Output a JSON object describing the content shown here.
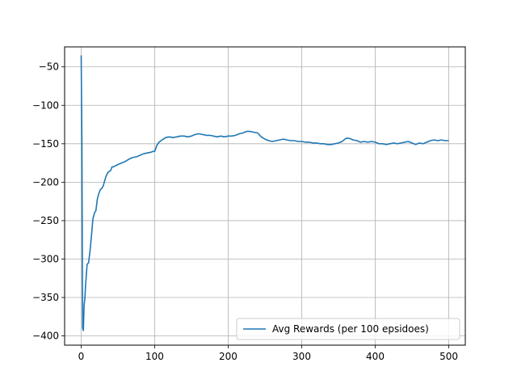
{
  "chart_data": {
    "type": "line",
    "title": "",
    "xlabel": "",
    "ylabel": "",
    "xlim": [
      -22.5,
      522.5
    ],
    "ylim": [
      -412,
      -24
    ],
    "x_ticks": [
      0,
      100,
      200,
      300,
      400,
      500
    ],
    "y_ticks": [
      -50,
      -100,
      -150,
      -200,
      -250,
      -300,
      -350,
      -400
    ],
    "x_tick_labels": [
      "0",
      "100",
      "200",
      "300",
      "400",
      "500"
    ],
    "y_tick_labels": [
      "−50",
      "−100",
      "−150",
      "−200",
      "−250",
      "−300",
      "−350",
      "−400"
    ],
    "grid": true,
    "legend_position": "lower-right",
    "series": [
      {
        "name": "Avg Rewards (per 100 epsidoes)",
        "color": "#1f77b4",
        "x": [
          0,
          1,
          2,
          3,
          4,
          5,
          6,
          8,
          10,
          12,
          14,
          16,
          18,
          20,
          22,
          24,
          26,
          28,
          30,
          32,
          34,
          36,
          38,
          40,
          42,
          44,
          46,
          48,
          50,
          55,
          60,
          65,
          70,
          75,
          80,
          85,
          90,
          95,
          98,
          100,
          103,
          106,
          110,
          115,
          120,
          125,
          130,
          135,
          140,
          145,
          150,
          155,
          160,
          165,
          170,
          175,
          180,
          185,
          190,
          195,
          200,
          205,
          210,
          215,
          220,
          225,
          230,
          235,
          240,
          245,
          250,
          255,
          260,
          265,
          270,
          275,
          280,
          285,
          290,
          295,
          300,
          305,
          310,
          315,
          320,
          325,
          330,
          335,
          340,
          345,
          350,
          355,
          360,
          365,
          370,
          375,
          380,
          385,
          390,
          395,
          400,
          405,
          410,
          415,
          420,
          425,
          430,
          435,
          440,
          445,
          450,
          455,
          460,
          465,
          470,
          475,
          480,
          485,
          490,
          495,
          500
        ],
        "values": [
          -35,
          -150,
          -390,
          -393,
          -360,
          -352,
          -335,
          -307,
          -305,
          -290,
          -270,
          -248,
          -240,
          -237,
          -222,
          -215,
          -210,
          -208,
          -205,
          -198,
          -192,
          -188,
          -186,
          -185,
          -180,
          -180,
          -179,
          -178,
          -177,
          -175,
          -173,
          -170,
          -168,
          -167,
          -165,
          -163,
          -162,
          -161,
          -160,
          -160,
          -152,
          -148,
          -145,
          -142,
          -141,
          -142,
          -141,
          -140,
          -140,
          -141,
          -140,
          -138,
          -137,
          -138,
          -139,
          -139,
          -140,
          -141,
          -140,
          -141,
          -140,
          -140,
          -139,
          -137,
          -136,
          -134,
          -134,
          -135,
          -136,
          -141,
          -144,
          -146,
          -147,
          -146,
          -145,
          -144,
          -145,
          -146,
          -146,
          -147,
          -147,
          -148,
          -148,
          -149,
          -149,
          -150,
          -150,
          -151,
          -151,
          -150,
          -149,
          -147,
          -143,
          -143,
          -145,
          -146,
          -148,
          -147,
          -148,
          -147,
          -148,
          -150,
          -150,
          -151,
          -150,
          -149,
          -150,
          -149,
          -148,
          -147,
          -149,
          -151,
          -149,
          -150,
          -148,
          -146,
          -145,
          -146,
          -145,
          -146,
          -146
        ]
      }
    ]
  }
}
